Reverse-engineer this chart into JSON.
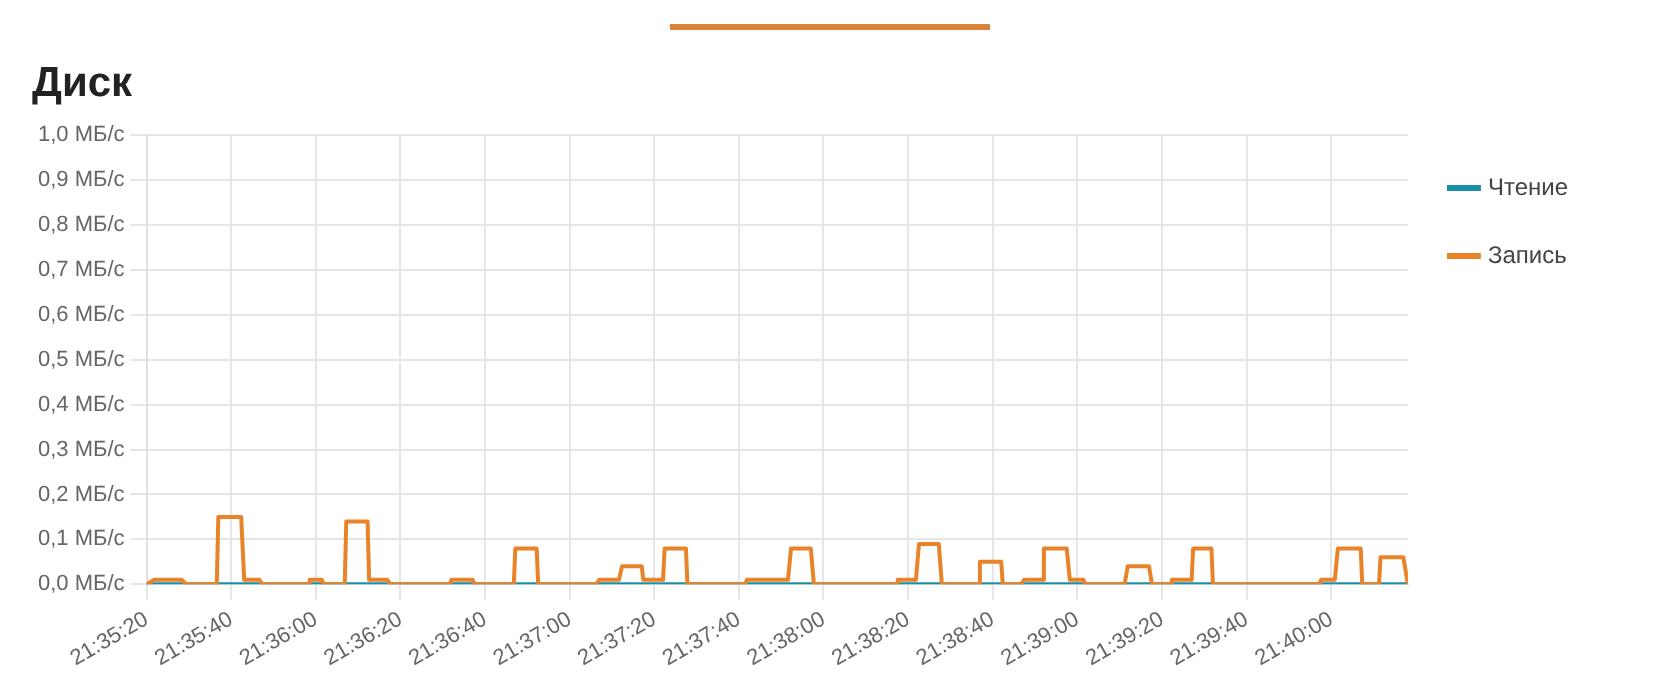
{
  "chart_data": {
    "type": "line",
    "title": "Диск",
    "xlim": [
      21.58889,
      21.6717
    ],
    "xticks": [
      {
        "value": 21.58889,
        "label": "21:35:20"
      },
      {
        "value": 21.59444,
        "label": "21:35:40"
      },
      {
        "value": 21.6,
        "label": "21:36:00"
      },
      {
        "value": 21.60556,
        "label": "21:36:20"
      },
      {
        "value": 21.61111,
        "label": "21:36:40"
      },
      {
        "value": 21.61667,
        "label": "21:37:00"
      },
      {
        "value": 21.62222,
        "label": "21:37:20"
      },
      {
        "value": 21.62778,
        "label": "21:37:40"
      },
      {
        "value": 21.63333,
        "label": "21:38:00"
      },
      {
        "value": 21.63889,
        "label": "21:38:20"
      },
      {
        "value": 21.64444,
        "label": "21:38:40"
      },
      {
        "value": 21.65,
        "label": "21:39:00"
      },
      {
        "value": 21.65556,
        "label": "21:39:20"
      },
      {
        "value": 21.66111,
        "label": "21:39:40"
      },
      {
        "value": 21.66667,
        "label": "21:40:00"
      }
    ],
    "ylim": [
      0,
      1
    ],
    "yticks": [
      {
        "value": 0,
        "label": "0,0 МБ/с"
      },
      {
        "value": 0.1,
        "label": "0,1 МБ/с"
      },
      {
        "value": 0.2,
        "label": "0,2 МБ/с"
      },
      {
        "value": 0.3,
        "label": "0,3 МБ/с"
      },
      {
        "value": 0.4,
        "label": "0,4 МБ/с"
      },
      {
        "value": 0.5,
        "label": "0,5 МБ/с"
      },
      {
        "value": 0.6,
        "label": "0,6 МБ/с"
      },
      {
        "value": 0.7,
        "label": "0,7 МБ/с"
      },
      {
        "value": 0.8,
        "label": "0,8 МБ/с"
      },
      {
        "value": 0.9,
        "label": "0,9 МБ/с"
      },
      {
        "value": 1,
        "label": "1,0 МБ/с"
      }
    ],
    "grid": true,
    "legend": "top right",
    "marker": "none",
    "line_style": "solid",
    "series": [
      {
        "name": "Чтение",
        "color": "#1a8fa6",
        "x": [
          21.58889,
          21.6717
        ],
        "values": [
          0,
          0
        ]
      },
      {
        "name": "Запись",
        "color": "#e8832a",
        "x": [
          21.58889,
          21.5894,
          21.5912,
          21.5915,
          21.5935,
          21.5936,
          21.5951,
          21.5953,
          21.5963,
          21.5965,
          21.5995,
          21.5996,
          21.6004,
          21.6005,
          21.6019,
          21.602,
          21.6034,
          21.6035,
          21.6047,
          21.6049,
          21.6088,
          21.6089,
          21.6103,
          21.6104,
          21.613,
          21.6131,
          21.6145,
          21.6146,
          21.6184,
          21.6186,
          21.6199,
          21.6201,
          21.6214,
          21.6215,
          21.6228,
          21.6229,
          21.6243,
          21.6244,
          21.6282,
          21.6283,
          21.631,
          21.6312,
          21.6325,
          21.6327,
          21.6381,
          21.6382,
          21.6394,
          21.6396,
          21.6409,
          21.6411,
          21.6435,
          21.6436,
          21.645,
          21.6451,
          21.6463,
          21.6465,
          21.6477,
          21.6478,
          21.6493,
          21.6495,
          21.6504,
          21.6505,
          21.6531,
          21.6533,
          21.6547,
          21.6549,
          21.6561,
          21.6562,
          21.6575,
          21.6576,
          21.6588,
          21.6589,
          21.6659,
          21.666,
          21.6669,
          21.6671,
          21.6686,
          21.6687,
          21.6698,
          21.6699,
          21.6714,
          21.6717
        ],
        "values": [
          0,
          0.01,
          0.01,
          0,
          0,
          0.15,
          0.15,
          0.01,
          0.01,
          0,
          0,
          0.01,
          0.01,
          0,
          0,
          0.14,
          0.14,
          0.01,
          0.01,
          0,
          0,
          0.01,
          0.01,
          0,
          0,
          0.08,
          0.08,
          0,
          0,
          0.01,
          0.01,
          0.04,
          0.04,
          0.01,
          0.01,
          0.08,
          0.08,
          0,
          0,
          0.01,
          0.01,
          0.08,
          0.08,
          0,
          0,
          0.01,
          0.01,
          0.09,
          0.09,
          0,
          0,
          0.05,
          0.05,
          0,
          0,
          0.01,
          0.01,
          0.08,
          0.08,
          0.01,
          0.01,
          0,
          0,
          0.04,
          0.04,
          0,
          0,
          0.01,
          0.01,
          0.08,
          0.08,
          0,
          0,
          0.01,
          0.01,
          0.08,
          0.08,
          0,
          0,
          0.06,
          0.06,
          0
        ]
      }
    ]
  }
}
